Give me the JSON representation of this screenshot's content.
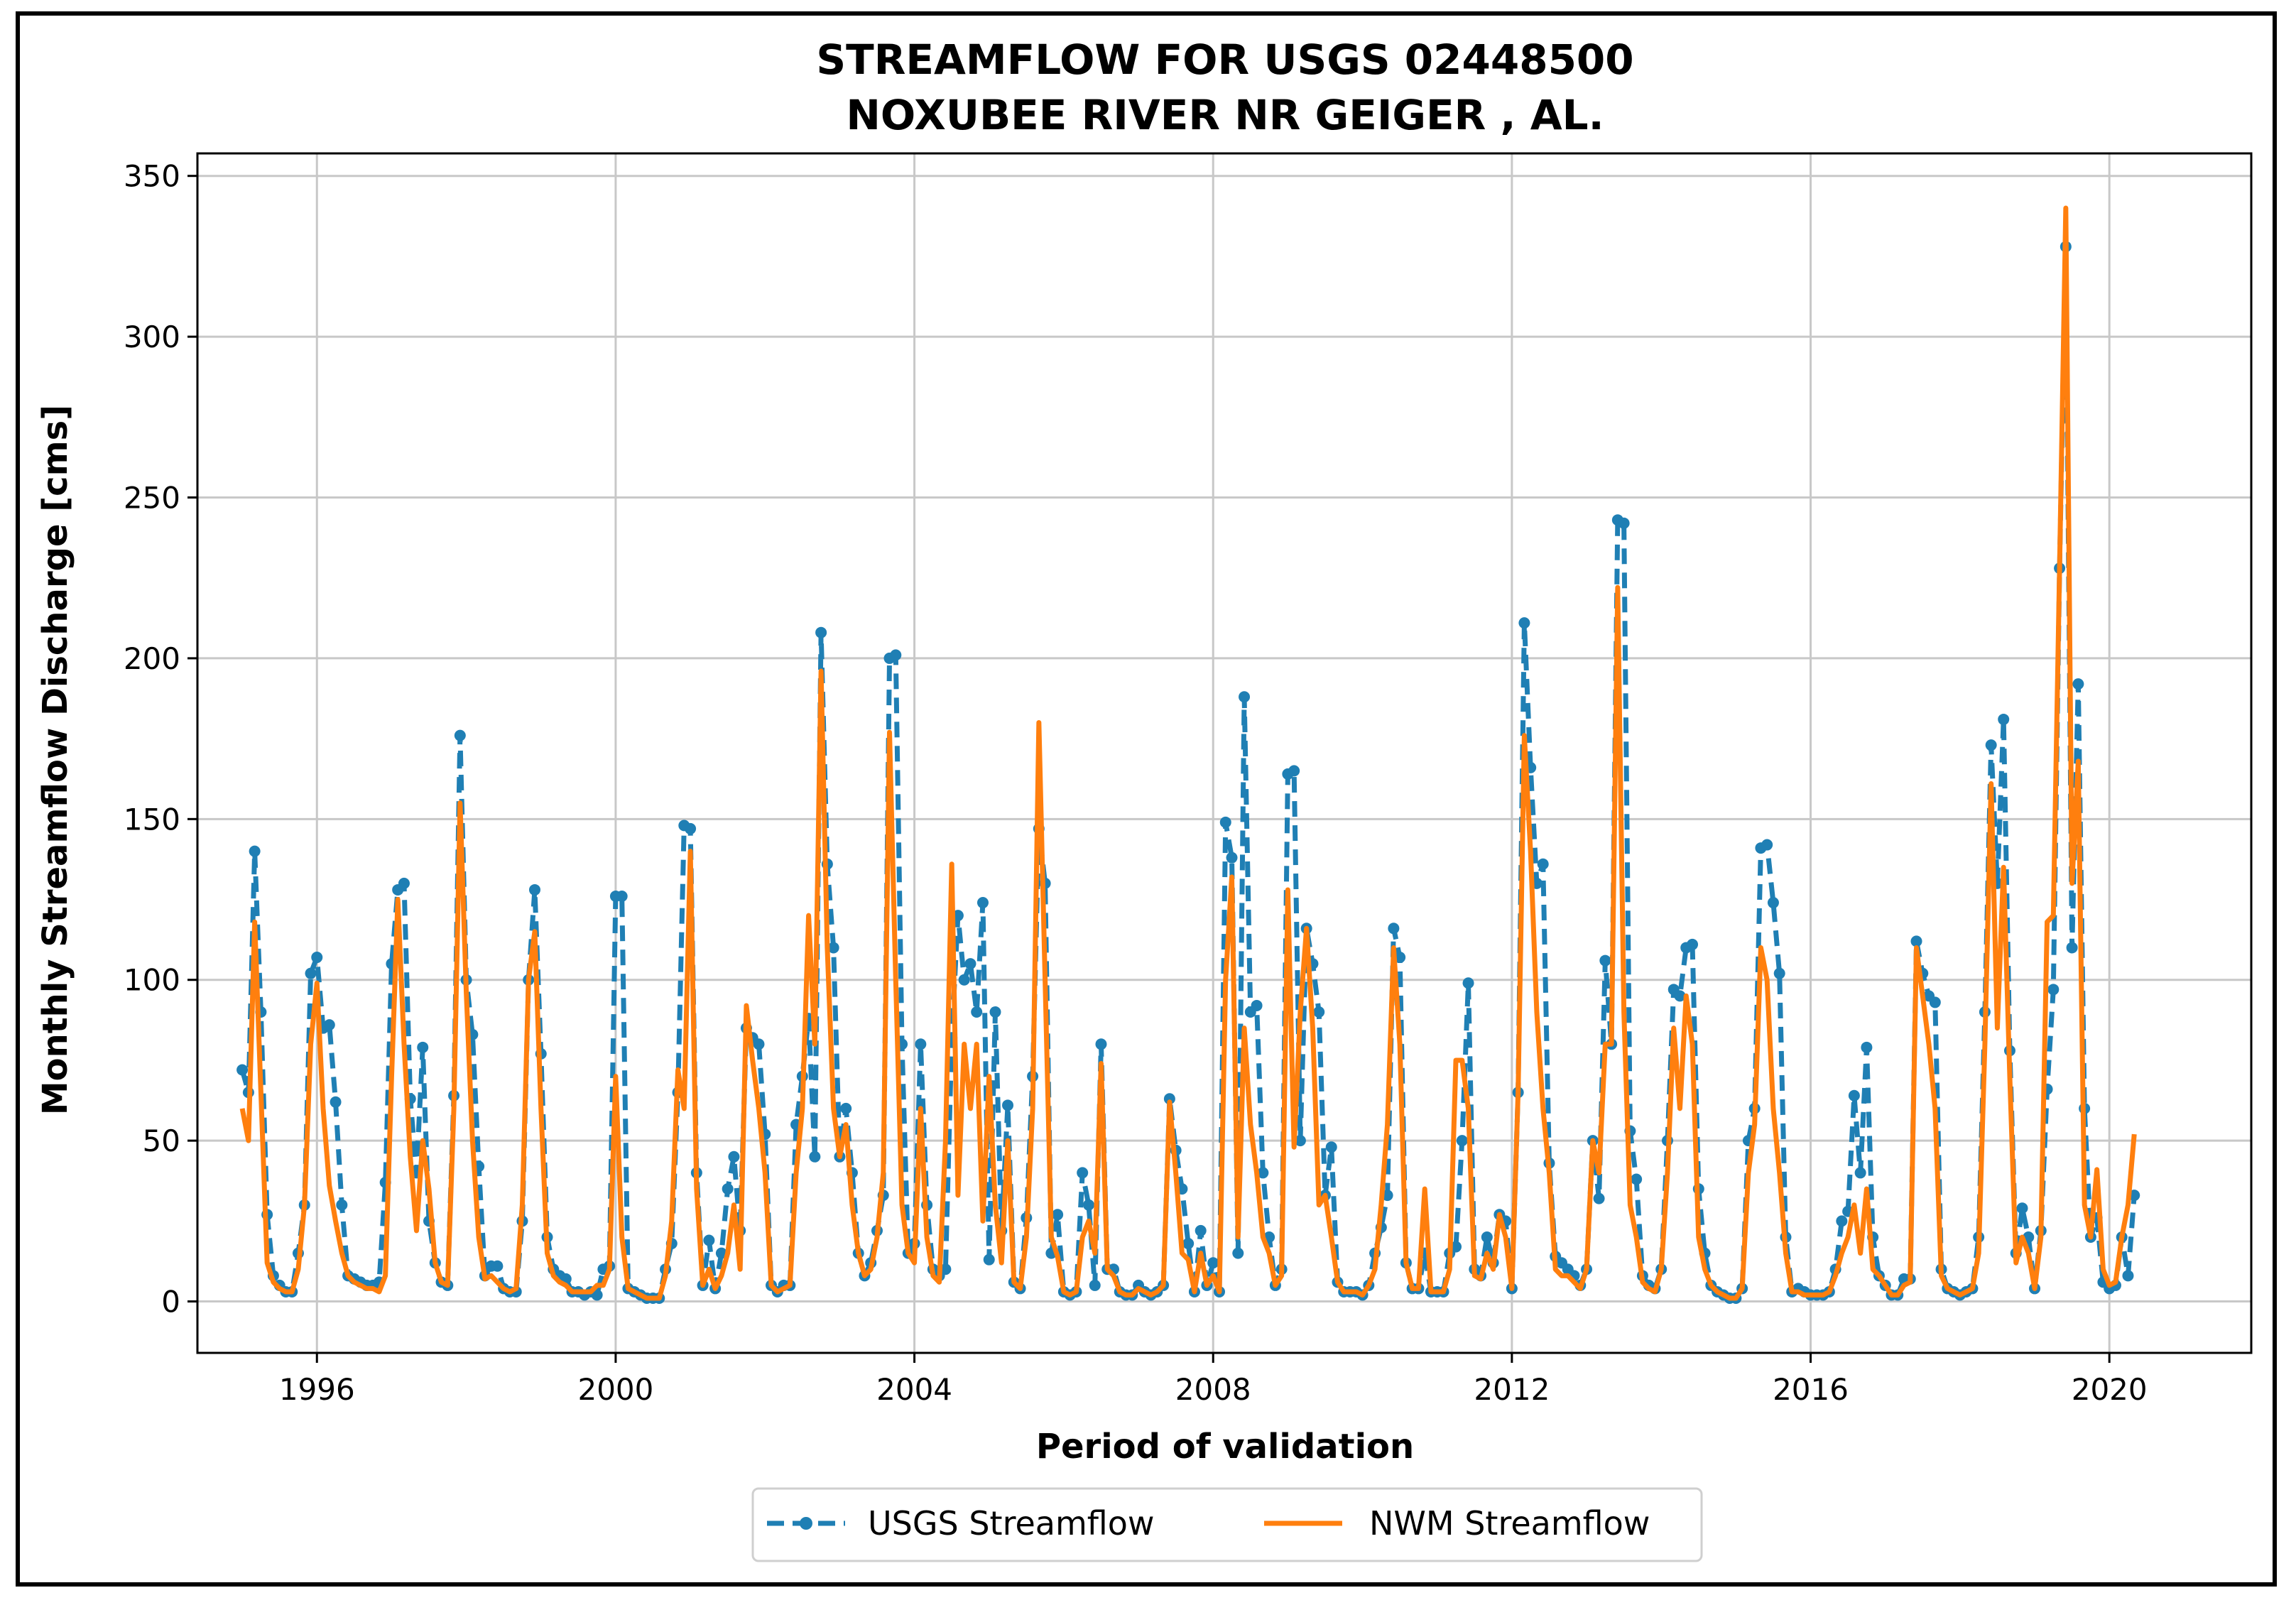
{
  "chart_data": {
    "type": "line",
    "title_lines": [
      "STREAMFLOW FOR USGS 02448500",
      "NOXUBEE RIVER NR GEIGER , AL."
    ],
    "xlabel": "Period of validation",
    "ylabel": "Monthly Streamflow Discharge [cms]",
    "xlim": [
      1994.4,
      2021.9
    ],
    "ylim": [
      -16,
      357
    ],
    "xticks": [
      1996,
      2000,
      2004,
      2008,
      2012,
      2016,
      2020
    ],
    "xtick_labels": [
      "1996",
      "2000",
      "2004",
      "2008",
      "2012",
      "2016",
      "2020"
    ],
    "yticks": [
      0,
      50,
      100,
      150,
      200,
      250,
      300,
      350
    ],
    "ytick_labels": [
      "0",
      "50",
      "100",
      "150",
      "200",
      "250",
      "300",
      "350"
    ],
    "grid": true,
    "legend_position": "bottom-center-outside",
    "colors": {
      "usgs": "#1f7fb4",
      "nwm": "#ff7f0e",
      "grid": "#c8c8c8"
    },
    "series": [
      {
        "name": "USGS Streamflow",
        "style": "dashed-with-dots",
        "x_start": 1995.0,
        "x_step_years": 0.0833333,
        "values": [
          72,
          65,
          140,
          90,
          27,
          8,
          5,
          3,
          3,
          15,
          30,
          102,
          107,
          85,
          86,
          62,
          30,
          8,
          7,
          6,
          5,
          5,
          6,
          37,
          105,
          128,
          130,
          63,
          40,
          79,
          25,
          12,
          6,
          5,
          64,
          176,
          100,
          83,
          42,
          8,
          11,
          11,
          4,
          3,
          3,
          25,
          100,
          128,
          77,
          20,
          10,
          8,
          7,
          3,
          3,
          2,
          3,
          2,
          10,
          11,
          126,
          126,
          4,
          3,
          2,
          1,
          1,
          1,
          10,
          18,
          65,
          148,
          147,
          40,
          5,
          19,
          4,
          15,
          35,
          45,
          22,
          85,
          82,
          80,
          52,
          5,
          3,
          5,
          5,
          55,
          70,
          88,
          45,
          208,
          136,
          110,
          45,
          60,
          40,
          15,
          8,
          12,
          22,
          33,
          200,
          201,
          80,
          15,
          18,
          80,
          30,
          10,
          8,
          10,
          82,
          120,
          100,
          105,
          90,
          124,
          13,
          90,
          22,
          61,
          6,
          4,
          26,
          70,
          147,
          130,
          15,
          27,
          3,
          2,
          3,
          40,
          30,
          5,
          80,
          10,
          10,
          3,
          2,
          2,
          5,
          3,
          2,
          3,
          5,
          63,
          47,
          35,
          18,
          3,
          22,
          5,
          12,
          3,
          149,
          138,
          15,
          188,
          90,
          92,
          40,
          20,
          5,
          10,
          164,
          165,
          50,
          116,
          105,
          90,
          33,
          48,
          6,
          3,
          3,
          3,
          2,
          5,
          15,
          23,
          33,
          116,
          107,
          12,
          4,
          4,
          15,
          3,
          3,
          3,
          15,
          17,
          50,
          99,
          10,
          8,
          20,
          12,
          27,
          25,
          4,
          65,
          211,
          166,
          130,
          136,
          43,
          14,
          12,
          10,
          8,
          5,
          10,
          50,
          32,
          106,
          80,
          243,
          242,
          53,
          38,
          8,
          5,
          4,
          10,
          50,
          97,
          95,
          110,
          111,
          35,
          15,
          5,
          3,
          2,
          1,
          1,
          4,
          50,
          60,
          141,
          142,
          124,
          102,
          20,
          3,
          4,
          3,
          2,
          2,
          2,
          3,
          10,
          25,
          28,
          64,
          40,
          79,
          20,
          8,
          5,
          2,
          2,
          7,
          7,
          112,
          102,
          95,
          93,
          10,
          4,
          3,
          2,
          3,
          4,
          20,
          90,
          173,
          130,
          181,
          78,
          15,
          29,
          20,
          4,
          22,
          66,
          97,
          228,
          328,
          110,
          192,
          60,
          20,
          26,
          6,
          4,
          5,
          20,
          8,
          33
        ]
      },
      {
        "name": "NWM Streamflow",
        "style": "solid",
        "x_start": 1995.0,
        "x_step_years": 0.0833333,
        "values": [
          60,
          50,
          118,
          65,
          12,
          6,
          4,
          3,
          3,
          10,
          30,
          80,
          99,
          60,
          36,
          25,
          15,
          8,
          6,
          5,
          4,
          4,
          3,
          8,
          70,
          125,
          80,
          45,
          22,
          50,
          35,
          12,
          6,
          5,
          60,
          155,
          96,
          50,
          20,
          7,
          8,
          6,
          4,
          3,
          4,
          30,
          100,
          115,
          60,
          15,
          8,
          6,
          5,
          3,
          3,
          3,
          3,
          5,
          5,
          10,
          70,
          20,
          4,
          3,
          2,
          1,
          1,
          1,
          8,
          25,
          72,
          60,
          140,
          35,
          5,
          10,
          4,
          8,
          15,
          30,
          10,
          92,
          75,
          60,
          40,
          5,
          3,
          4,
          5,
          40,
          60,
          120,
          80,
          196,
          110,
          60,
          45,
          55,
          30,
          15,
          8,
          10,
          20,
          40,
          177,
          100,
          30,
          15,
          12,
          60,
          20,
          8,
          6,
          50,
          136,
          33,
          80,
          60,
          80,
          25,
          70,
          30,
          12,
          50,
          6,
          4,
          20,
          60,
          180,
          100,
          20,
          14,
          3,
          2,
          3,
          20,
          25,
          15,
          74,
          10,
          8,
          3,
          2,
          2,
          4,
          3,
          2,
          3,
          5,
          62,
          40,
          15,
          13,
          3,
          15,
          5,
          8,
          3,
          100,
          132,
          20,
          85,
          55,
          40,
          20,
          15,
          5,
          8,
          128,
          48,
          90,
          116,
          85,
          30,
          33,
          20,
          6,
          3,
          3,
          3,
          2,
          5,
          10,
          30,
          55,
          110,
          80,
          12,
          4,
          4,
          35,
          3,
          3,
          3,
          10,
          75,
          75,
          60,
          8,
          7,
          15,
          10,
          27,
          20,
          4,
          65,
          176,
          140,
          90,
          60,
          40,
          10,
          8,
          8,
          6,
          4,
          10,
          50,
          40,
          80,
          80,
          222,
          90,
          30,
          20,
          6,
          4,
          3,
          10,
          40,
          85,
          60,
          95,
          80,
          20,
          10,
          5,
          3,
          2,
          1,
          1,
          4,
          40,
          55,
          110,
          100,
          60,
          40,
          15,
          3,
          3,
          2,
          2,
          2,
          2,
          3,
          8,
          15,
          20,
          30,
          15,
          35,
          10,
          8,
          5,
          2,
          2,
          5,
          6,
          110,
          95,
          80,
          60,
          8,
          4,
          3,
          2,
          3,
          4,
          15,
          80,
          161,
          85,
          135,
          70,
          12,
          20,
          15,
          4,
          20,
          118,
          120,
          228,
          340,
          130,
          168,
          30,
          20,
          41,
          10,
          5,
          6,
          20,
          30,
          52
        ]
      }
    ]
  }
}
